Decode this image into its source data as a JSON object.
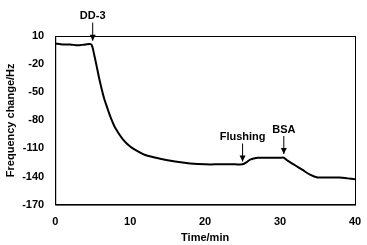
{
  "chart_data": {
    "type": "line",
    "x_label": "Time/min",
    "y_label": "Frequency change/Hz",
    "x": [
      0,
      1,
      2,
      3,
      4,
      4.8,
      5.2,
      5.6,
      6,
      6.5,
      7,
      7.5,
      8,
      9,
      10,
      11,
      12,
      14,
      16,
      18,
      20,
      22,
      24,
      25,
      25.5,
      26,
      27,
      28,
      29,
      30,
      30.5,
      31,
      32,
      33,
      34,
      35,
      36,
      37,
      38,
      39,
      40
    ],
    "series": [
      {
        "name": "DD-3",
        "color": "#000000",
        "values": [
          2,
          1,
          1,
          0,
          1,
          1,
          -10,
          -25,
          -40,
          -56,
          -68,
          -79,
          -88,
          -100,
          -108,
          -113,
          -117,
          -121,
          -124,
          -126,
          -127,
          -127,
          -127,
          -127,
          -125,
          -122,
          -120,
          -120,
          -120,
          -120,
          -120,
          -123,
          -128,
          -133,
          -138,
          -141,
          -141,
          -141,
          -141,
          -142,
          -143
        ]
      }
    ],
    "xlim": [
      0,
      40
    ],
    "xticks": [
      0,
      10,
      20,
      30,
      40
    ],
    "ylim": [
      -170,
      10
    ],
    "yticks": [
      -170,
      -140,
      -110,
      -80,
      -50,
      -20,
      10
    ],
    "grid": false,
    "annotations": [
      {
        "text": "DD-3",
        "x": 5,
        "y": 5
      },
      {
        "text": "Flushing",
        "x": 25,
        "y": -124
      },
      {
        "text": "BSA",
        "x": 30.5,
        "y": -116
      }
    ]
  }
}
